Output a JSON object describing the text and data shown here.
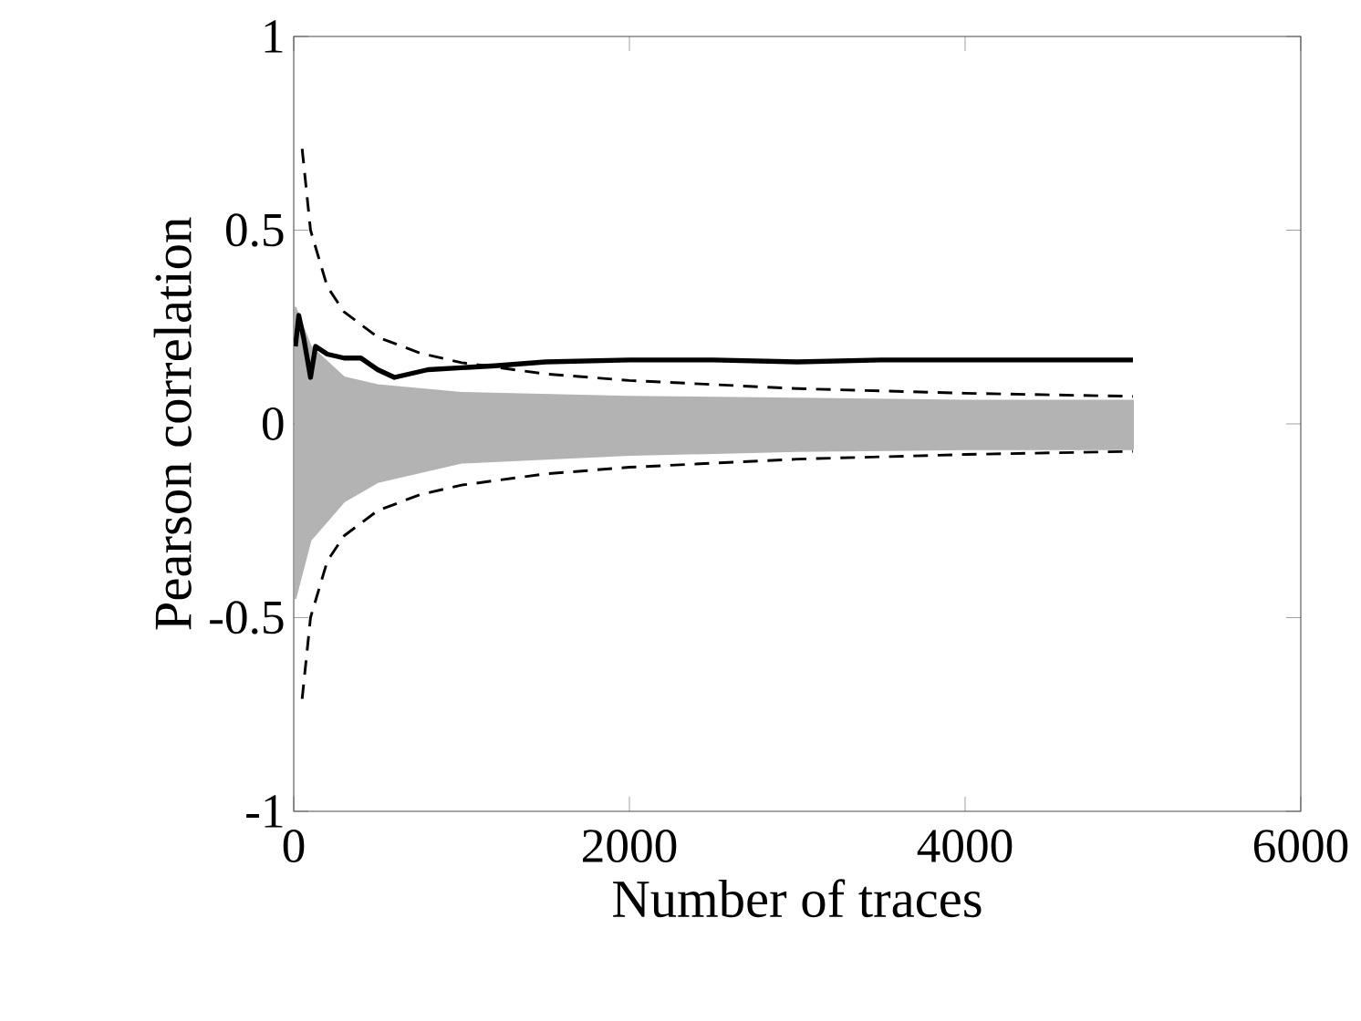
{
  "chart_data": {
    "type": "line",
    "xlabel": "Number of traces",
    "ylabel": "Pearson correlation",
    "xlim": [
      0,
      6000
    ],
    "ylim": [
      -1,
      1
    ],
    "xticks": [
      0,
      2000,
      4000,
      6000
    ],
    "yticks": [
      -1,
      -0.5,
      0,
      0.5,
      1
    ],
    "grid": false,
    "series": [
      {
        "type": "area",
        "color": "#b3b3b3",
        "x": [
          10,
          100,
          300,
          500,
          1000,
          2000,
          3000,
          4000,
          5000
        ],
        "values": [
          0.3,
          0.2,
          0.12,
          0.1,
          0.08,
          0.07,
          0.065,
          0.06,
          0.06
        ]
      },
      {
        "type": "area",
        "color": "#b3b3b3",
        "x": [
          10,
          100,
          300,
          500,
          1000,
          2000,
          3000,
          4000,
          5000
        ],
        "values": [
          -0.45,
          -0.3,
          -0.2,
          -0.15,
          -0.1,
          -0.08,
          -0.07,
          -0.065,
          -0.065
        ]
      },
      {
        "color": "#000000",
        "line_style": "dashed",
        "x": [
          50,
          100,
          200,
          300,
          500,
          750,
          1000,
          1500,
          2000,
          3000,
          4000,
          5000
        ],
        "values": [
          0.71,
          0.5,
          0.354,
          0.289,
          0.224,
          0.183,
          0.158,
          0.129,
          0.112,
          0.091,
          0.079,
          0.071
        ]
      },
      {
        "color": "#000000",
        "line_style": "dashed",
        "x": [
          50,
          100,
          200,
          300,
          500,
          750,
          1000,
          1500,
          2000,
          3000,
          4000,
          5000
        ],
        "values": [
          -0.71,
          -0.5,
          -0.354,
          -0.289,
          -0.224,
          -0.183,
          -0.158,
          -0.129,
          -0.112,
          -0.091,
          -0.079,
          -0.071
        ]
      },
      {
        "color": "#000000",
        "line_style": "solid",
        "x": [
          10,
          30,
          60,
          100,
          130,
          200,
          300,
          400,
          500,
          600,
          700,
          800,
          1000,
          1200,
          1500,
          2000,
          2500,
          3000,
          3500,
          4000,
          4500,
          5000
        ],
        "values": [
          0.2,
          0.28,
          0.22,
          0.12,
          0.2,
          0.18,
          0.17,
          0.17,
          0.14,
          0.12,
          0.13,
          0.14,
          0.145,
          0.15,
          0.16,
          0.165,
          0.165,
          0.16,
          0.165,
          0.165,
          0.165,
          0.165
        ]
      }
    ]
  }
}
